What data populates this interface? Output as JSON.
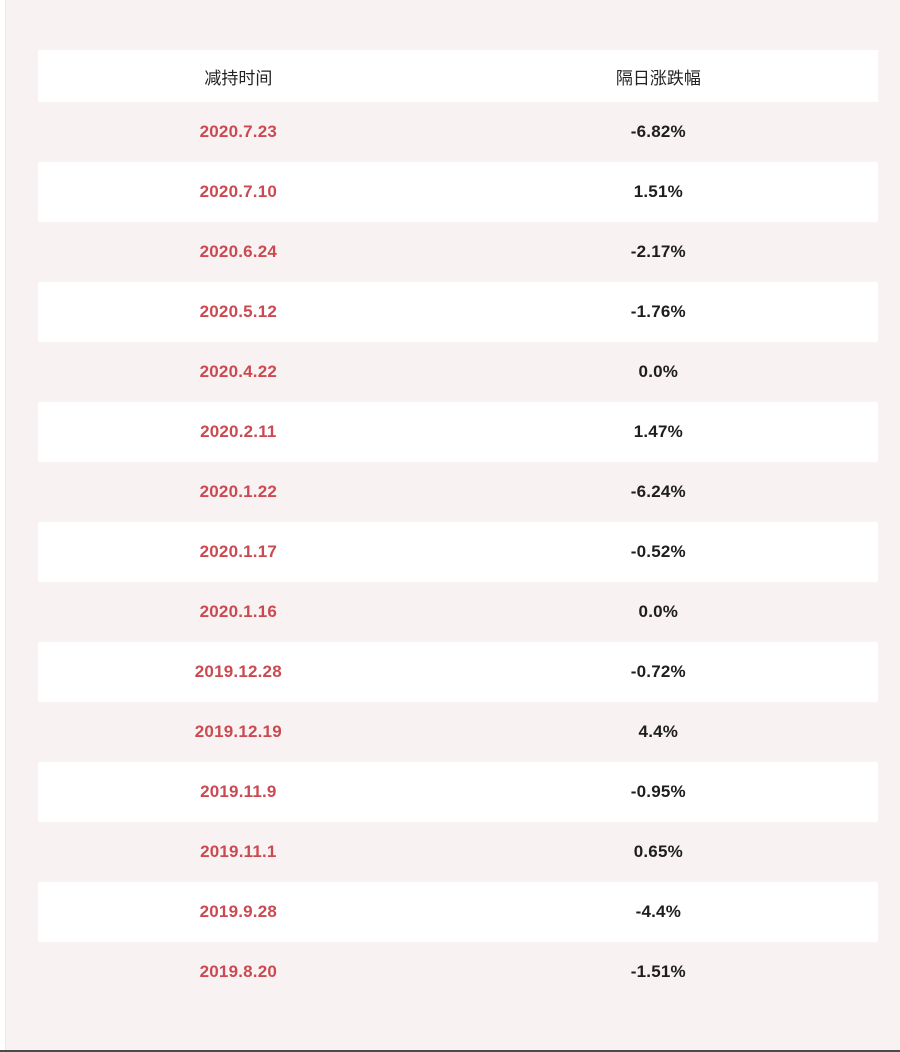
{
  "chart_data": {
    "type": "table",
    "columns": [
      "减持时间",
      "隔日涨跌幅"
    ],
    "rows": [
      {
        "date": "2020.7.23",
        "change": "-6.82%"
      },
      {
        "date": "2020.7.10",
        "change": "1.51%"
      },
      {
        "date": "2020.6.24",
        "change": "-2.17%"
      },
      {
        "date": "2020.5.12",
        "change": "-1.76%"
      },
      {
        "date": "2020.4.22",
        "change": "0.0%"
      },
      {
        "date": "2020.2.11",
        "change": "1.47%"
      },
      {
        "date": "2020.1.22",
        "change": "-6.24%"
      },
      {
        "date": "2020.1.17",
        "change": "-0.52%"
      },
      {
        "date": "2020.1.16",
        "change": "0.0%"
      },
      {
        "date": "2019.12.28",
        "change": "-0.72%"
      },
      {
        "date": "2019.12.19",
        "change": "4.4%"
      },
      {
        "date": "2019.11.9",
        "change": "-0.95%"
      },
      {
        "date": "2019.11.1",
        "change": "0.65%"
      },
      {
        "date": "2019.9.28",
        "change": "-4.4%"
      },
      {
        "date": "2019.8.20",
        "change": "-1.51%"
      }
    ]
  },
  "colors": {
    "page_background": "#f8f2f3",
    "row_white": "#ffffff",
    "date_red": "#cb4a52",
    "value_black": "#1e1e1e",
    "bottom_bar": "#4a4a4a"
  }
}
